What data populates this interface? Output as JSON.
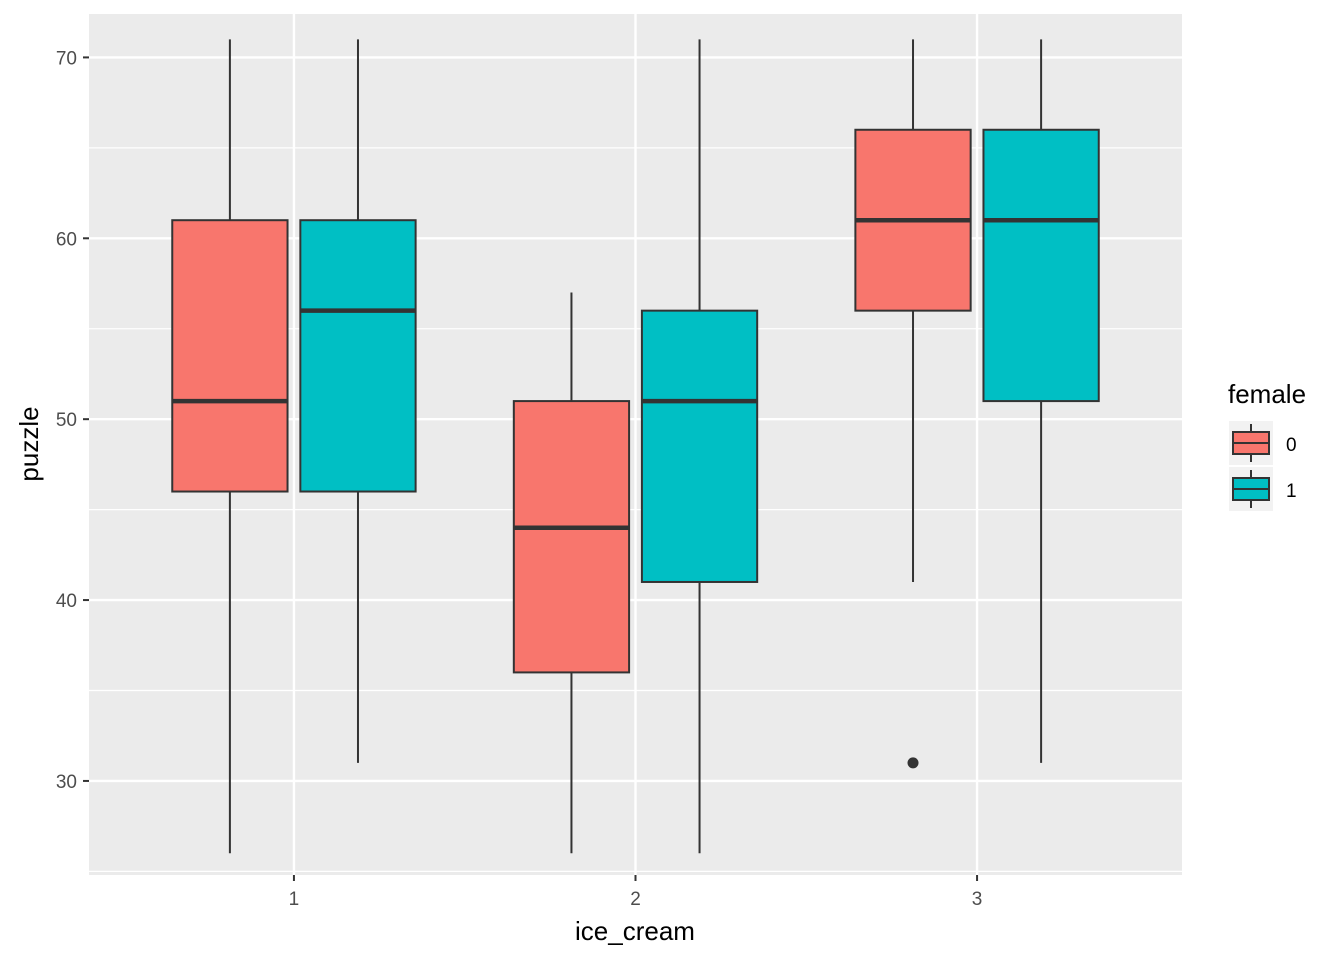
{
  "chart_data": {
    "type": "boxplot",
    "xlabel": "ice_cream",
    "ylabel": "puzzle",
    "categories": [
      "1",
      "2",
      "3"
    ],
    "ylim": [
      24.8,
      72.4
    ],
    "yticks": [
      30,
      40,
      50,
      60,
      70
    ],
    "ytick_labels": [
      "30",
      "40",
      "50",
      "60",
      "70"
    ],
    "grid": true,
    "legend": {
      "title": "female",
      "position": "right",
      "entries": [
        {
          "label": "0",
          "color": "#F8766D"
        },
        {
          "label": "1",
          "color": "#00BFC4"
        }
      ]
    },
    "series": [
      {
        "name": "0",
        "color": "#F8766D",
        "boxes": [
          {
            "category": "1",
            "whisker_low": 26,
            "q1": 46,
            "median": 51,
            "q3": 61,
            "whisker_high": 71,
            "outliers": []
          },
          {
            "category": "2",
            "whisker_low": 26,
            "q1": 36,
            "median": 44,
            "q3": 51,
            "whisker_high": 57,
            "outliers": []
          },
          {
            "category": "3",
            "whisker_low": 41,
            "q1": 56,
            "median": 61,
            "q3": 66,
            "whisker_high": 71,
            "outliers": [
              31
            ]
          }
        ]
      },
      {
        "name": "1",
        "color": "#00BFC4",
        "boxes": [
          {
            "category": "1",
            "whisker_low": 31,
            "q1": 46,
            "median": 56,
            "q3": 61,
            "whisker_high": 71,
            "outliers": []
          },
          {
            "category": "2",
            "whisker_low": 26,
            "q1": 41,
            "median": 51,
            "q3": 56,
            "whisker_high": 71,
            "outliers": []
          },
          {
            "category": "3",
            "whisker_low": 31,
            "q1": 51,
            "median": 61,
            "q3": 66,
            "whisker_high": 71,
            "outliers": []
          }
        ]
      }
    ]
  }
}
